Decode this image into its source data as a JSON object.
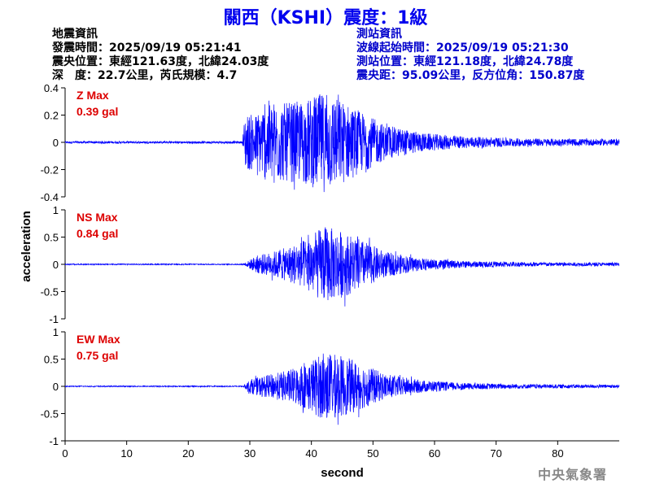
{
  "title": "關西（KSHI）震度：1級",
  "quake_info": {
    "heading": "地震資訊",
    "time": "發震時間：2025/09/19 05:21:41",
    "epicenter": "震央位置：東經121.63度，北緯24.03度",
    "depth_magnitude": "深　度：22.7公里，芮氏規模：4.7"
  },
  "station_info": {
    "heading": "測站資訊",
    "wave_start": "波線起始時間：2025/09/19 05:21:30",
    "location": "測站位置：東經121.18度，北緯24.78度",
    "distance": "震央距：95.09公里，反方位角：150.87度"
  },
  "credit": "中央氣象署",
  "colors": {
    "trace": "#0000ff",
    "max_label": "#dd0000",
    "axis": "#000000"
  },
  "chart_data": {
    "type": "line",
    "xlabel": "second",
    "ylabel": "acceleration",
    "xlim": [
      0,
      90
    ],
    "xticks": [
      0,
      10,
      20,
      30,
      40,
      50,
      60,
      70,
      80
    ],
    "grid": false,
    "onset_seconds": 29,
    "panels": [
      {
        "name": "Z",
        "max_label": "Z Max",
        "max_value": "0.39 gal",
        "ylim": [
          -0.4,
          0.4
        ],
        "yticks": [
          -0.4,
          -0.2,
          0,
          0.2,
          0.4
        ],
        "ytick_labels": [
          "-0.4",
          "-0.2",
          "0",
          "0.2",
          "0.4"
        ],
        "noise_amplitude": 0.008,
        "envelope": [
          {
            "t": 28.8,
            "a": 0.0
          },
          {
            "t": 29.2,
            "a": 0.2
          },
          {
            "t": 31,
            "a": 0.2
          },
          {
            "t": 33,
            "a": 0.3
          },
          {
            "t": 36,
            "a": 0.28
          },
          {
            "t": 39,
            "a": 0.3
          },
          {
            "t": 42,
            "a": 0.36
          },
          {
            "t": 45,
            "a": 0.3
          },
          {
            "t": 48,
            "a": 0.22
          },
          {
            "t": 52,
            "a": 0.12
          },
          {
            "t": 58,
            "a": 0.06
          },
          {
            "t": 65,
            "a": 0.035
          },
          {
            "t": 75,
            "a": 0.02
          },
          {
            "t": 90,
            "a": 0.015
          }
        ]
      },
      {
        "name": "NS",
        "max_label": "NS Max",
        "max_value": "0.84 gal",
        "ylim": [
          -1,
          1
        ],
        "yticks": [
          -1,
          -0.5,
          0,
          0.5,
          1
        ],
        "ytick_labels": [
          "-1",
          "-0.5",
          "0",
          "0.5",
          "1"
        ],
        "noise_amplitude": 0.01,
        "envelope": [
          {
            "t": 29,
            "a": 0.0
          },
          {
            "t": 31,
            "a": 0.15
          },
          {
            "t": 33,
            "a": 0.2
          },
          {
            "t": 36,
            "a": 0.3
          },
          {
            "t": 39,
            "a": 0.45
          },
          {
            "t": 42,
            "a": 0.7
          },
          {
            "t": 45,
            "a": 0.6
          },
          {
            "t": 48,
            "a": 0.45
          },
          {
            "t": 52,
            "a": 0.22
          },
          {
            "t": 58,
            "a": 0.1
          },
          {
            "t": 65,
            "a": 0.05
          },
          {
            "t": 75,
            "a": 0.03
          },
          {
            "t": 90,
            "a": 0.02
          }
        ]
      },
      {
        "name": "EW",
        "max_label": "EW Max",
        "max_value": "0.75 gal",
        "ylim": [
          -1,
          1
        ],
        "yticks": [
          -1,
          -0.5,
          0,
          0.5,
          1
        ],
        "ytick_labels": [
          "-1",
          "-0.5",
          "0",
          "0.5",
          "1"
        ],
        "noise_amplitude": 0.01,
        "envelope": [
          {
            "t": 29,
            "a": 0.0
          },
          {
            "t": 30,
            "a": 0.12
          },
          {
            "t": 33,
            "a": 0.2
          },
          {
            "t": 36,
            "a": 0.28
          },
          {
            "t": 39,
            "a": 0.4
          },
          {
            "t": 42,
            "a": 0.62
          },
          {
            "t": 45,
            "a": 0.55
          },
          {
            "t": 48,
            "a": 0.42
          },
          {
            "t": 52,
            "a": 0.22
          },
          {
            "t": 58,
            "a": 0.1
          },
          {
            "t": 65,
            "a": 0.05
          },
          {
            "t": 75,
            "a": 0.03
          },
          {
            "t": 90,
            "a": 0.02
          }
        ]
      }
    ]
  }
}
